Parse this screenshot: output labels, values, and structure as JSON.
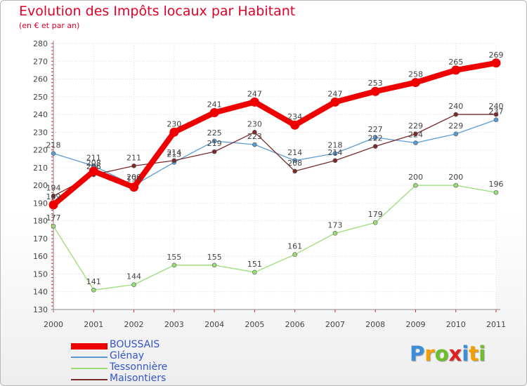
{
  "header": {
    "title": "Evolution des Impôts locaux par Habitant",
    "subtitle": "(en € et par an)"
  },
  "logo": {
    "letters": [
      "P",
      "r",
      "o",
      "x",
      "i",
      "t",
      "i"
    ],
    "colors": [
      "#3a8fd8",
      "#f2a000",
      "#6cbf2a",
      "#e02020",
      "#3a8fd8",
      "#f2a000",
      "#6cbf2a"
    ]
  },
  "chart_data": {
    "type": "line",
    "title": "Evolution des Impôts locaux par Habitant",
    "xlabel": "",
    "ylabel": "(en € et par an)",
    "x": [
      "2000",
      "2001",
      "2002",
      "2003",
      "2004",
      "2005",
      "2006",
      "2007",
      "2008",
      "2009",
      "2010",
      "2011"
    ],
    "ylim": [
      130,
      280
    ],
    "yticks": [
      130,
      140,
      150,
      160,
      170,
      180,
      190,
      200,
      210,
      220,
      230,
      240,
      250,
      260,
      270,
      280
    ],
    "grid": true,
    "legend_position": "bottom-left",
    "series": [
      {
        "name": "Glénay",
        "color": "#5b9bd5",
        "values": [
          218,
          211,
          200,
          213,
          225,
          223,
          214,
          218,
          227,
          224,
          229,
          237
        ],
        "labels": [
          "218",
          "211",
          "200",
          "213",
          "225",
          "223",
          "214",
          "218",
          "227",
          "224",
          "229",
          "237"
        ]
      },
      {
        "name": "Tessonnière",
        "color": "#99dd77",
        "values": [
          177,
          141,
          144,
          155,
          155,
          151,
          161,
          173,
          179,
          200,
          200,
          196
        ],
        "labels": [
          "177",
          "141",
          "144",
          "155",
          "155",
          "151",
          "161",
          "173",
          "179",
          "200",
          "200",
          "196"
        ]
      },
      {
        "name": "Maisontiers",
        "color": "#7a2a2a",
        "values": [
          194,
          206,
          211,
          214,
          219,
          230,
          208,
          214,
          222,
          229,
          240,
          240
        ],
        "labels": [
          "194",
          "206",
          "211",
          "214",
          "219",
          "230",
          "208",
          "214",
          "222",
          "229",
          "240",
          "240"
        ]
      },
      {
        "name": "BOUSSAIS",
        "color": "#ee0000",
        "values": [
          189,
          208,
          199,
          230,
          241,
          247,
          234,
          247,
          253,
          258,
          265,
          269
        ],
        "labels": [
          "189",
          "208",
          "199",
          "230",
          "241",
          "247",
          "234",
          "247",
          "253",
          "258",
          "265",
          "269"
        ]
      }
    ],
    "legend_order": [
      "BOUSSAIS",
      "Glénay",
      "Tessonnière",
      "Maisontiers"
    ]
  }
}
